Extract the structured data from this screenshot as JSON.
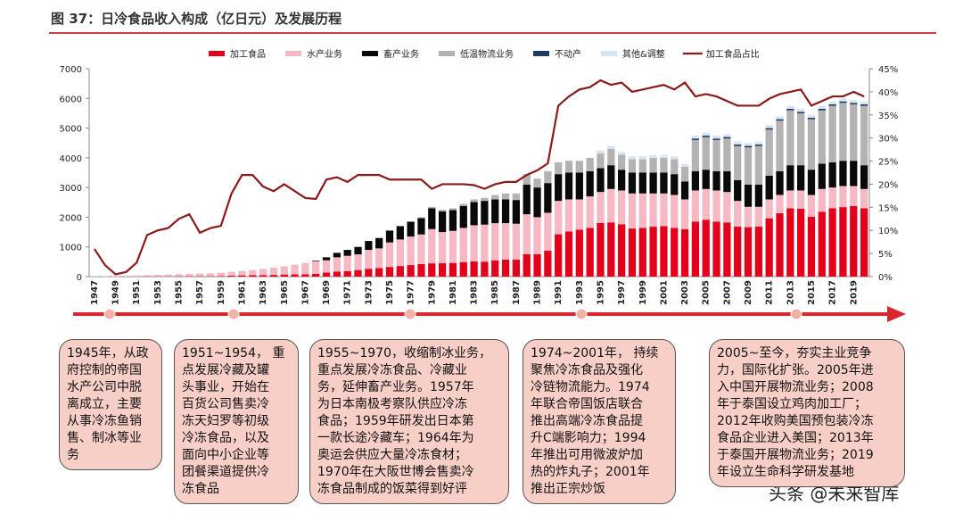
{
  "header": {
    "title": "图 37：日冷食品收入构成（亿日元）及发展历程"
  },
  "chart_data": {
    "type": "bar",
    "stacked": true,
    "categories": [
      "1947",
      null,
      "1949",
      null,
      "1951",
      null,
      "1953",
      null,
      "1955",
      null,
      "1957",
      null,
      "1959",
      null,
      "1961",
      null,
      "1963",
      null,
      "1965",
      null,
      "1967",
      null,
      "1969",
      null,
      "1971",
      null,
      "1973",
      null,
      "1975",
      null,
      "1977",
      null,
      "1979",
      null,
      "1981",
      null,
      "1983",
      null,
      "1985",
      null,
      "1987",
      null,
      "1989",
      null,
      "1991",
      null,
      "1993",
      null,
      "1995",
      null,
      "1997",
      null,
      "1999",
      null,
      "2001",
      null,
      "2003",
      null,
      "2005",
      null,
      "2007",
      null,
      "2009",
      null,
      "2011",
      null,
      "2013",
      null,
      "2015",
      null,
      "2017",
      null,
      "2019",
      null
    ],
    "ylim": [
      0,
      7000
    ],
    "yticks": [
      0,
      1000,
      2000,
      3000,
      4000,
      5000,
      6000,
      7000
    ],
    "y2lim": [
      0,
      45
    ],
    "y2ticks": [
      {
        "value": 0,
        "label": "0%"
      },
      {
        "value": 5,
        "label": "5%"
      },
      {
        "value": 10,
        "label": "10%"
      },
      {
        "value": 15,
        "label": "15%"
      },
      {
        "value": 20,
        "label": "20%"
      },
      {
        "value": 25,
        "label": "25%"
      },
      {
        "value": 30,
        "label": "30%"
      },
      {
        "value": 35,
        "label": "35%"
      },
      {
        "value": 40,
        "label": "40%"
      },
      {
        "value": 45,
        "label": "45%"
      }
    ],
    "legend": "top",
    "series": [
      {
        "name": "加工食品",
        "color": "#e3001b",
        "values": [
          1,
          0,
          0,
          0,
          1,
          5,
          6,
          7,
          10,
          12,
          10,
          12,
          14,
          29,
          42,
          48,
          51,
          56,
          70,
          74,
          78,
          91,
          137,
          172,
          185,
          220,
          264,
          286,
          326,
          357,
          389,
          420,
          447,
          450,
          460,
          490,
          515,
          504,
          550,
          574,
          574,
          759,
          759,
          870,
          1425,
          1521,
          1580,
          1640,
          1806,
          1826,
          1764,
          1620,
          1640,
          1681,
          1702,
          1640,
          1596,
          1853,
          1916,
          1853,
          1824,
          1684,
          1665,
          1684,
          1964,
          2133,
          2300,
          2288,
          2017,
          2185,
          2301,
          2340,
          2380,
          2301
        ]
      },
      {
        "name": "水产业务",
        "color": "#f6b8c2",
        "values": [
          9,
          15,
          20,
          30,
          39,
          45,
          54,
          63,
          70,
          78,
          90,
          98,
          116,
          131,
          148,
          172,
          209,
          244,
          280,
          326,
          382,
          429,
          413,
          478,
          515,
          530,
          636,
          664,
          824,
          893,
          961,
          1000,
          1153,
          1050,
          1080,
          1150,
          1215,
          1246,
          1250,
          1226,
          1206,
          1341,
          1241,
          1280,
          1125,
          1079,
          1020,
          1060,
          1044,
          1124,
          1136,
          1180,
          1160,
          1119,
          1098,
          1110,
          1004,
          1047,
          1034,
          1047,
          1026,
          866,
          685,
          666,
          636,
          617,
          600,
          612,
          733,
          765,
          699,
          710,
          670,
          649
        ]
      },
      {
        "name": "畜产业务",
        "color": "#0a0a0a",
        "values": [
          0,
          0,
          0,
          0,
          0,
          0,
          0,
          0,
          0,
          0,
          0,
          0,
          0,
          0,
          0,
          0,
          0,
          0,
          0,
          0,
          0,
          20,
          100,
          150,
          200,
          250,
          300,
          350,
          400,
          450,
          500,
          550,
          700,
          700,
          700,
          740,
          780,
          800,
          800,
          800,
          800,
          1000,
          1000,
          1000,
          900,
          900,
          900,
          850,
          800,
          800,
          700,
          700,
          700,
          700,
          700,
          700,
          600,
          650,
          650,
          650,
          700,
          700,
          750,
          750,
          800,
          800,
          850,
          850,
          850,
          850,
          850,
          850,
          850,
          800
        ]
      },
      {
        "name": "低温物流业务",
        "color": "#b3b3b3",
        "values": [
          0,
          0,
          0,
          0,
          0,
          0,
          0,
          0,
          0,
          0,
          0,
          0,
          0,
          0,
          0,
          0,
          0,
          0,
          0,
          0,
          0,
          0,
          0,
          0,
          0,
          0,
          0,
          0,
          0,
          0,
          0,
          30,
          50,
          50,
          60,
          70,
          90,
          100,
          150,
          200,
          220,
          350,
          300,
          400,
          400,
          400,
          400,
          450,
          500,
          550,
          500,
          450,
          450,
          500,
          500,
          500,
          500,
          1050,
          1100,
          1050,
          1100,
          1150,
          1250,
          1300,
          1550,
          1700,
          1850,
          1750,
          1700,
          1800,
          1900,
          1950,
          1900,
          2000
        ]
      },
      {
        "name": "不动产",
        "color": "#1f3864",
        "values": [
          0,
          0,
          0,
          0,
          0,
          0,
          0,
          0,
          0,
          0,
          0,
          0,
          0,
          0,
          0,
          0,
          0,
          0,
          0,
          0,
          0,
          0,
          0,
          0,
          0,
          0,
          0,
          0,
          0,
          0,
          0,
          0,
          0,
          0,
          0,
          0,
          0,
          0,
          0,
          0,
          0,
          0,
          0,
          0,
          0,
          0,
          0,
          0,
          0,
          0,
          0,
          0,
          0,
          0,
          0,
          0,
          0,
          50,
          50,
          50,
          50,
          50,
          50,
          50,
          50,
          50,
          50,
          50,
          50,
          50,
          50,
          50,
          50,
          50
        ]
      },
      {
        "name": "其他&调整",
        "color": "#d6e6f5",
        "values": [
          0,
          0,
          0,
          0,
          0,
          0,
          0,
          0,
          0,
          0,
          0,
          0,
          0,
          0,
          0,
          0,
          0,
          0,
          0,
          0,
          0,
          0,
          0,
          0,
          0,
          0,
          0,
          0,
          0,
          0,
          0,
          0,
          0,
          0,
          0,
          0,
          0,
          0,
          0,
          0,
          0,
          0,
          0,
          0,
          0,
          0,
          0,
          0,
          100,
          100,
          100,
          100,
          100,
          100,
          100,
          100,
          100,
          100,
          100,
          100,
          100,
          100,
          100,
          100,
          100,
          100,
          100,
          100,
          100,
          100,
          100,
          100,
          100,
          100
        ]
      },
      {
        "name": "加工食品占比",
        "color": "#8b1a1a",
        "type": "line",
        "axis": "y2",
        "values": [
          6,
          2.5,
          0.5,
          1,
          3,
          9,
          10,
          10.5,
          12.5,
          13.5,
          9.5,
          10.5,
          11,
          18,
          22,
          22,
          19.5,
          18.5,
          20,
          18.5,
          17,
          16.8,
          21,
          21.5,
          20.5,
          22,
          22,
          22,
          21,
          21,
          21,
          21,
          19,
          20,
          20,
          20,
          19.8,
          19,
          20,
          20.5,
          20.5,
          22,
          23,
          24.5,
          37,
          39,
          40.5,
          41,
          42.5,
          41.5,
          42,
          40,
          40.5,
          41,
          41.5,
          40.5,
          42,
          39,
          39.5,
          39,
          38,
          37,
          37,
          37,
          38.5,
          39.5,
          40,
          40.5,
          37,
          38,
          39,
          39,
          40,
          39
        ]
      }
    ]
  },
  "timeline": {
    "events": [
      {
        "lines": [
          "1945年，从政",
          "府控制的帝国",
          "水产公司中脱",
          "离成立，主要",
          "从事冷冻鱼销",
          "售、制冰等业",
          "务"
        ]
      },
      {
        "lines": [
          "1951~1954，  重",
          "点发展冷藏及罐",
          "头事业，开始在",
          "百货公司售卖冷",
          "冻天妇罗等初级",
          "冷冻食品，以及",
          "面向中小企业等",
          "团餐渠道提供冷",
          "冻食品"
        ]
      },
      {
        "lines": [
          "1955~1970，收缩制冰业务，",
          "重点发展冷冻食品、冷藏业",
          "务，延伸畜产业务。1957年",
          "为日本南极考察队供应冷冻",
          "食品；1959年研发出日本第",
          "一款长途冷藏车；1964年为",
          "奥运会供应大量冷冻食材；",
          "1970年在大阪世博会售卖冷",
          "冻食品制成的饭菜得到好评"
        ]
      },
      {
        "lines": [
          "1974~2001年，  持续",
          "聚焦冷冻食品及强化",
          "冷链物流能力。1974",
          "年联合帝国饭店联合",
          "推出高端冷冻食品提",
          "升C端影响力；1994",
          "年推出可用微波炉加",
          "热的炸丸子；2001年",
          "推出正宗炒饭"
        ]
      },
      {
        "lines": [
          "  2005~至今，夯实主业竞争",
          "力，国际化扩张。2005年进",
          "入中国开展物流业务；2008",
          "年于泰国设立鸡肉加工厂；",
          "2012年收购美国预包装冷冻",
          "食品企业进入美国；2013年",
          "于泰国开展物流业务；2019",
          "年设立生命科学研发基地"
        ]
      }
    ]
  },
  "watermark": "头条 @未来智库"
}
